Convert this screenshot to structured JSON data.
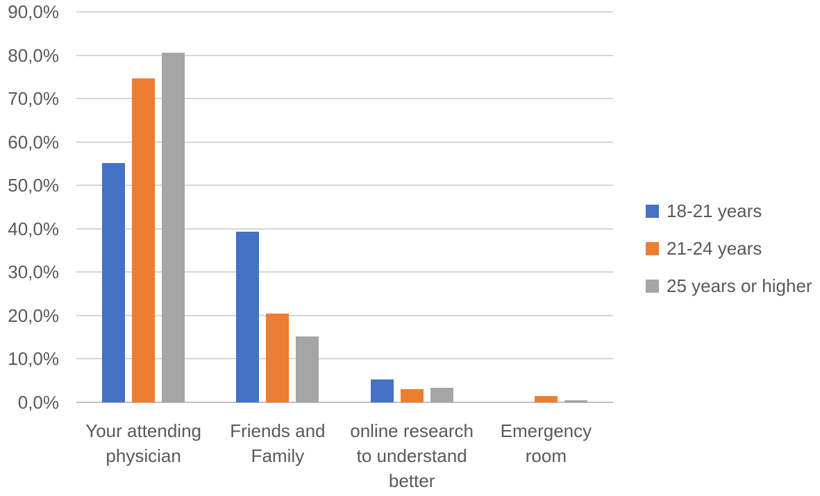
{
  "chart_data": {
    "type": "bar",
    "title": "",
    "categories": [
      "Your attending physician",
      "Friends and Family",
      "online research to understand better",
      "Emergency room"
    ],
    "category_label_lines": [
      [
        "Your attending",
        "physician"
      ],
      [
        "Friends and",
        "Family"
      ],
      [
        "online research",
        "to understand",
        "better"
      ],
      [
        "Emergency",
        "room"
      ]
    ],
    "series": [
      {
        "name": "18-21 years",
        "color": "#4472C4",
        "values": [
          55.2,
          39.3,
          5.2,
          0.0
        ]
      },
      {
        "name": "21-24 years",
        "color": "#ED7D31",
        "values": [
          74.6,
          20.5,
          3.1,
          1.5
        ]
      },
      {
        "name": "25 years or higher",
        "color": "#A5A5A5",
        "values": [
          80.5,
          15.2,
          3.3,
          0.5
        ]
      }
    ],
    "ylabel": "",
    "xlabel": "",
    "ylim": [
      0,
      90
    ],
    "ytick_step": 10,
    "ytick_labels": [
      "0,0%",
      "10,0%",
      "20,0%",
      "30,0%",
      "40,0%",
      "50,0%",
      "60,0%",
      "70,0%",
      "80,0%",
      "90,0%"
    ],
    "value_unit": "percent",
    "grid": true,
    "legend_position": "right",
    "colors": {
      "grid_line": "#D6D6D6",
      "axis_line": "#BFBFBF",
      "label_text": "#595959",
      "background": "#FFFFFF"
    }
  }
}
